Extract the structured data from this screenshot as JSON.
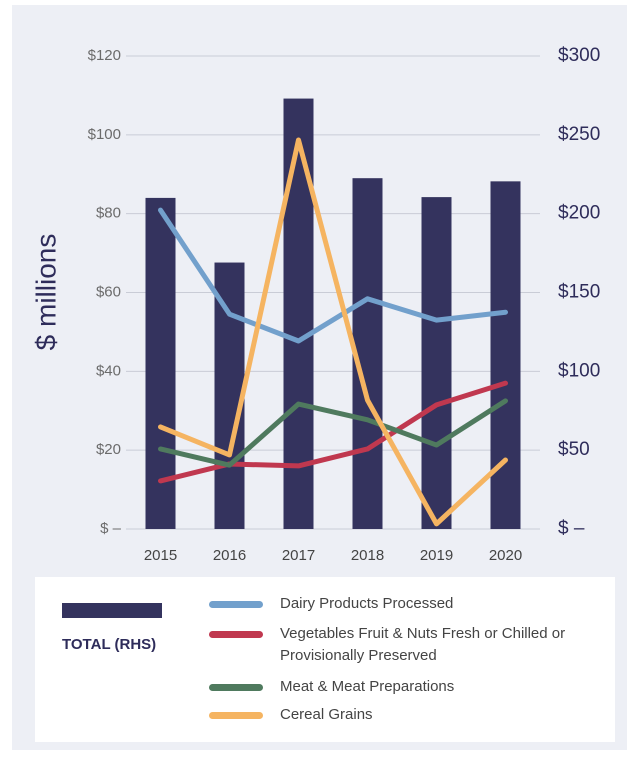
{
  "chart_data": {
    "type": "combo",
    "y_label": "$ millions",
    "categories": [
      "2015",
      "2016",
      "2017",
      "2018",
      "2019",
      "2020"
    ],
    "series": [
      {
        "name": "TOTAL (RHS)",
        "type": "bar",
        "axis": "y2",
        "color": "#34335e",
        "values": [
          210,
          169,
          273,
          222.5,
          210.5,
          220.5
        ]
      },
      {
        "name": "Dairy Products Processed",
        "type": "line",
        "color": "#72a0cc",
        "values": [
          80.9,
          54.5,
          47.7,
          58.4,
          53,
          55
        ]
      },
      {
        "name": "Vegetables Fruit & Nuts Fresh or Chilled or Provisionally Preserved",
        "type": "line",
        "color": "#c0384f",
        "values": [
          12.2,
          16.5,
          16,
          20.3,
          31.5,
          37
        ]
      },
      {
        "name": "Meat & Meat Preparations",
        "type": "line",
        "color": "#4f7a5e",
        "values": [
          20.3,
          16.2,
          31.7,
          27.7,
          21.3,
          32.5
        ]
      },
      {
        "name": "Cereal Grains",
        "type": "line",
        "color": "#f5b461",
        "values": [
          25.9,
          18.8,
          98.7,
          32.7,
          1.3,
          17.5
        ]
      }
    ],
    "ylim": [
      0,
      120
    ],
    "yticks": [
      {
        "value": 0,
        "label": "$ –"
      },
      {
        "value": 20,
        "label": "$20"
      },
      {
        "value": 40,
        "label": "$40"
      },
      {
        "value": 60,
        "label": "$60"
      },
      {
        "value": 80,
        "label": "$80"
      },
      {
        "value": 100,
        "label": "$100"
      },
      {
        "value": 120,
        "label": "$120"
      }
    ],
    "y2lim": [
      0,
      300
    ],
    "y2ticks": [
      {
        "value": 0,
        "label": "$ –"
      },
      {
        "value": 50,
        "label": "$50"
      },
      {
        "value": 100,
        "label": "$100"
      },
      {
        "value": 150,
        "label": "$150"
      },
      {
        "value": 200,
        "label": "$200"
      },
      {
        "value": 250,
        "label": "$250"
      },
      {
        "value": 300,
        "label": "$300"
      }
    ],
    "grid": true
  }
}
